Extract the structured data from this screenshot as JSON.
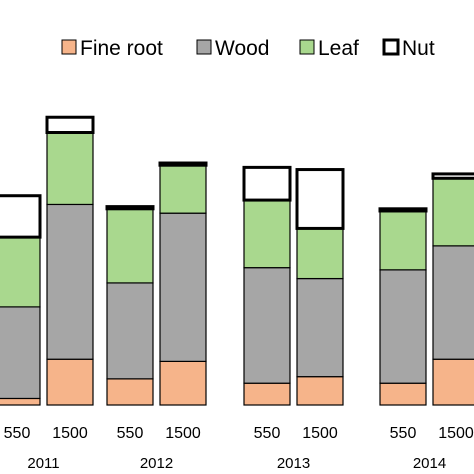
{
  "chart_data": {
    "type": "bar",
    "stacked": true,
    "legend_position": "top-right",
    "grid": false,
    "colors": {
      "fine_root": "#f6b48a",
      "wood": "#a6a6a6",
      "leaf": "#a9d88e",
      "nut": "#ffffff",
      "outline": "#000000"
    },
    "series": [
      {
        "key": "fine_root",
        "name": "Fine root"
      },
      {
        "key": "wood",
        "name": "Wood"
      },
      {
        "key": "leaf",
        "name": "Leaf"
      },
      {
        "key": "nut",
        "name": "Nut"
      }
    ],
    "groups": [
      {
        "year": "2011",
        "bars": [
          {
            "label": "550",
            "values": [
              3,
              42,
              32,
              19
            ]
          },
          {
            "label": "1500",
            "values": [
              21,
              71,
              33,
              7
            ]
          }
        ]
      },
      {
        "year": "2012",
        "bars": [
          {
            "label": "550",
            "values": [
              12,
              44,
              34,
              1
            ]
          },
          {
            "label": "1500",
            "values": [
              20,
              68,
              22,
              1
            ]
          }
        ]
      },
      {
        "year": "2013",
        "bars": [
          {
            "label": "550",
            "values": [
              10,
              53,
              31,
              15
            ]
          },
          {
            "label": "1500",
            "values": [
              13,
              45,
              23,
              27
            ]
          }
        ]
      },
      {
        "year": "2014",
        "bars": [
          {
            "label": "550",
            "values": [
              10,
              52,
              27,
              1
            ]
          },
          {
            "label": "1500",
            "values": [
              21,
              52,
              31,
              2
            ]
          }
        ]
      }
    ]
  }
}
